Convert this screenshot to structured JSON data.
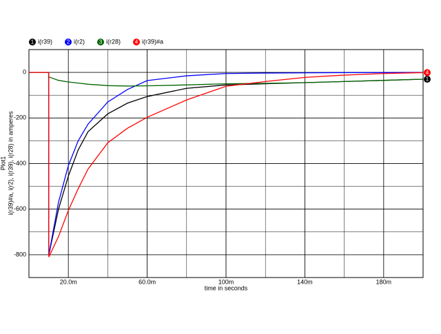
{
  "chart_data": {
    "type": "line",
    "y_label": "i(r39)#a, i(r2), i(r39), i(r28) in amperes",
    "plot_name": "Plot1",
    "x_label": "time in seconds",
    "x": [
      0,
      0.01,
      0.0101,
      0.015,
      0.02,
      0.025,
      0.03,
      0.04,
      0.05,
      0.06,
      0.08,
      0.1,
      0.12,
      0.14,
      0.16,
      0.18,
      0.2
    ],
    "series": [
      {
        "marker": "1",
        "name": "i(r39)",
        "color": "#000000",
        "values": [
          0,
          0,
          -800,
          -600,
          -455,
          -340,
          -260,
          -182,
          -135,
          -106,
          -70,
          -55,
          -50,
          -45,
          -40,
          -35,
          -30
        ]
      },
      {
        "marker": "2",
        "name": "i(r2)",
        "color": "#0000ff",
        "values": [
          0,
          0,
          -800,
          -570,
          -409,
          -300,
          -227,
          -130,
          -75,
          -36,
          -15,
          -5,
          -3,
          -2,
          -1,
          -1,
          0
        ]
      },
      {
        "marker": "3",
        "name": "i(r28)",
        "color": "#006400",
        "values": [
          0,
          0,
          -20,
          -35,
          -42,
          -47,
          -52,
          -58,
          -60,
          -59,
          -55,
          -50,
          -48,
          -45,
          -40,
          -35,
          -30
        ]
      },
      {
        "marker": "4",
        "name": "i(r39)#a",
        "color": "#ff0000",
        "values": [
          0,
          0,
          -810,
          -720,
          -606,
          -510,
          -424,
          -309,
          -245,
          -197,
          -121,
          -61,
          -40,
          -22,
          -12,
          -5,
          -1
        ]
      }
    ],
    "xlim": [
      0,
      0.2
    ],
    "xticks": [
      {
        "value": 0.02,
        "label": "20.0m"
      },
      {
        "value": 0.06,
        "label": "60.0m"
      },
      {
        "value": 0.1,
        "label": "100m"
      },
      {
        "value": 0.14,
        "label": "140m"
      },
      {
        "value": 0.18,
        "label": "180m"
      }
    ],
    "ylim": [
      -900,
      100
    ],
    "yticks": [
      0,
      -200,
      -400,
      -600,
      -800
    ],
    "grid": true
  }
}
